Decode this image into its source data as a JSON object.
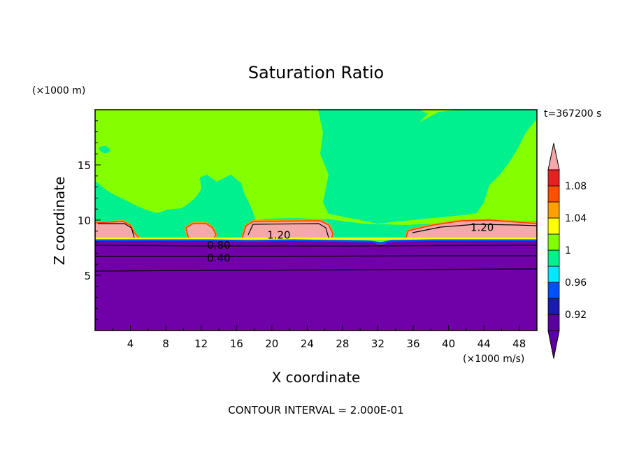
{
  "chart_data": {
    "type": "heatmap",
    "title": "Saturation Ratio",
    "xlabel": "X coordinate",
    "ylabel": "Z coordinate",
    "x_unit": "(×1000 m/s)",
    "y_unit": "(×1000 m)",
    "time_label": "t=367200 s",
    "footer": "CONTOUR INTERVAL = 2.000E-01",
    "xlim": [
      0,
      50
    ],
    "ylim": [
      0,
      20
    ],
    "x_ticks": [
      4,
      8,
      12,
      16,
      20,
      24,
      28,
      32,
      36,
      40,
      44,
      48
    ],
    "y_ticks": [
      5,
      10,
      15
    ],
    "colorbar": {
      "levels": [
        0.9,
        0.92,
        0.94,
        0.96,
        0.98,
        1.0,
        1.02,
        1.04,
        1.06,
        1.08,
        1.1
      ],
      "tick_labels": [
        "0.92",
        "0.96",
        "1",
        "1.04",
        "1.08"
      ],
      "tick_values": [
        0.92,
        0.96,
        1.0,
        1.04,
        1.08
      ],
      "colors": [
        "#5a009e",
        "#1a1ab0",
        "#0050ff",
        "#00e8ff",
        "#00f090",
        "#84ff00",
        "#ffff00",
        "#ffa000",
        "#ff5000",
        "#e82020",
        "#f4a8a8"
      ],
      "extend": "both"
    },
    "contour_labels": [
      {
        "text": "0.40",
        "x": 14.0,
        "z": 6.6
      },
      {
        "text": "0.80",
        "x": 14.0,
        "z": 7.8
      },
      {
        "text": "1.20",
        "x": 20.8,
        "z": 8.7
      },
      {
        "text": "1.20",
        "x": 43.8,
        "z": 9.4
      }
    ]
  },
  "colors": {
    "dry_region": "#7000a8",
    "near_saturation": "#00f090",
    "slight_supersat": "#84ff00",
    "cloud_core": "#f4a8a8",
    "cloud_edge_orange": "#ffa000",
    "cloud_edge_red": "#ff3a00",
    "cloud_edge_yellow": "#ffff00",
    "inversion_blue": "#0050ff"
  }
}
